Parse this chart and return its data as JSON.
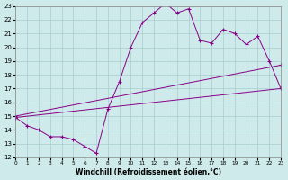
{
  "xlabel": "Windchill (Refroidissement éolien,°C)",
  "bg_color": "#ceeaea",
  "grid_color": "#aacccc",
  "line_color": "#880088",
  "xlim": [
    0,
    23
  ],
  "ylim": [
    12,
    23
  ],
  "xticks": [
    0,
    1,
    2,
    3,
    4,
    5,
    6,
    7,
    8,
    9,
    10,
    11,
    12,
    13,
    14,
    15,
    16,
    17,
    18,
    19,
    20,
    21,
    22,
    23
  ],
  "yticks": [
    12,
    13,
    14,
    15,
    16,
    17,
    18,
    19,
    20,
    21,
    22,
    23
  ],
  "line1_x": [
    0,
    1,
    2,
    3,
    4,
    5,
    6,
    7,
    8,
    9,
    10,
    11,
    12,
    13,
    14,
    15,
    16,
    17,
    18,
    19,
    20,
    21,
    22,
    23
  ],
  "line1_y": [
    14.9,
    14.3,
    14.0,
    13.5,
    13.5,
    13.3,
    12.8,
    12.3,
    15.5,
    17.5,
    20.0,
    21.8,
    22.5,
    23.2,
    22.5,
    22.8,
    20.5,
    20.3,
    21.3,
    21.0,
    20.2,
    20.8,
    19.0,
    17.0
  ],
  "line2_x": [
    0,
    23
  ],
  "line2_y": [
    14.9,
    17.0
  ],
  "line3_x": [
    0,
    23
  ],
  "line3_y": [
    15.0,
    18.7
  ]
}
